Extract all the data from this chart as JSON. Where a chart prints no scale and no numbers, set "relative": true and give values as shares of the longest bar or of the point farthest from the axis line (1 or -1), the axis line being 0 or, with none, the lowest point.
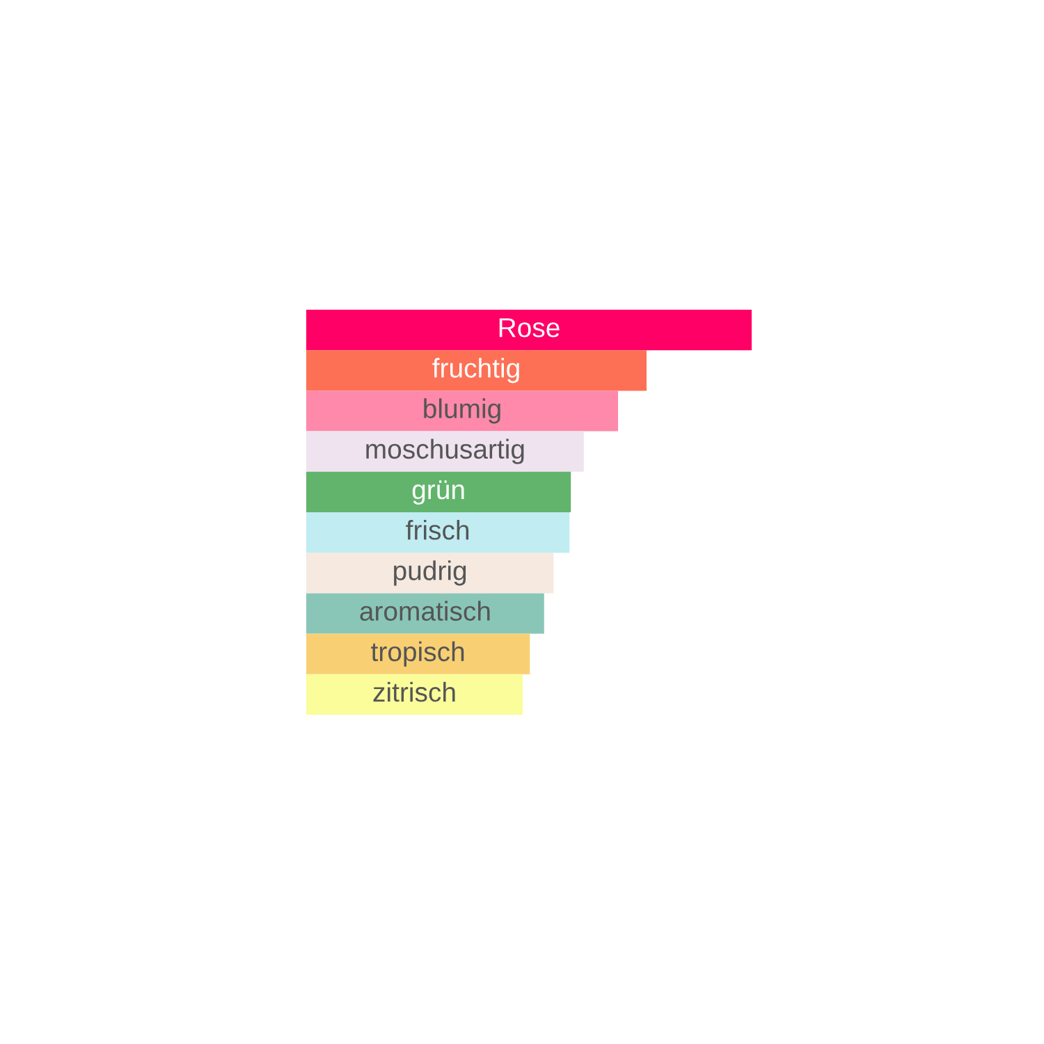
{
  "chart_data": {
    "type": "bar",
    "orientation": "horizontal",
    "relative": true,
    "data_labels": false,
    "categories": [
      "Rose",
      "fruchtig",
      "blumig",
      "moschusartig",
      "grün",
      "frisch",
      "pudrig",
      "aromatisch",
      "tropisch",
      "zitrisch"
    ],
    "values": [
      1,
      0.764,
      0.7,
      0.623,
      0.594,
      0.591,
      0.555,
      0.534,
      0.502,
      0.486
    ],
    "colors": [
      "#ff0066",
      "#fd7055",
      "#fe89aa",
      "#efe3f0",
      "#62b46c",
      "#c0ecf2",
      "#f5e9e0",
      "#8ac6b7",
      "#f8d073",
      "#fafd9a"
    ]
  }
}
